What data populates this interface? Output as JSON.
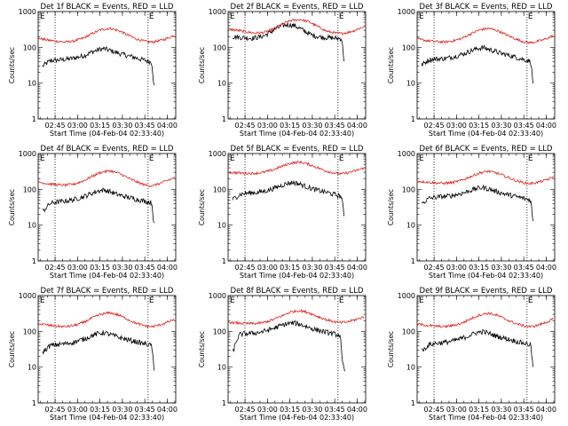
{
  "figure": {
    "start_time_label": "Start Time (04-Feb-04 02:33:40)",
    "ylabel": "Counts/sec",
    "x_ticks": [
      "02:45",
      "03:00",
      "03:15",
      "03:30",
      "03:45",
      "04:00"
    ],
    "y_ticks": [
      "1",
      "10",
      "100",
      "1000"
    ],
    "marker": "E",
    "colors": {
      "events": "#000000",
      "lld": "#e0201b",
      "dotted": "#000000"
    }
  },
  "chart_data": [
    {
      "type": "line",
      "title": "Det 1f BLACK = Events, RED = LLD",
      "x_unit": "minutes after 02:33:40",
      "xlim": [
        0,
        92
      ],
      "ylim": [
        1,
        1000
      ],
      "yscale": "log",
      "dotted_x": [
        11.3,
        73.5
      ],
      "series": [
        {
          "name": "Events",
          "x": [
            3,
            8,
            12,
            16,
            20,
            24,
            28,
            32,
            36,
            40,
            44,
            48,
            52,
            56,
            60,
            64,
            68,
            72,
            76,
            77.5
          ],
          "values": [
            30,
            42,
            44,
            45,
            47,
            50,
            55,
            62,
            74,
            85,
            92,
            82,
            72,
            64,
            58,
            53,
            47,
            43,
            38,
            8
          ]
        },
        {
          "name": "LLD",
          "x": [
            0,
            6,
            12,
            18,
            24,
            30,
            36,
            42,
            48,
            54,
            60,
            66,
            72,
            76,
            80,
            84,
            88,
            91
          ],
          "values": [
            180,
            160,
            148,
            140,
            150,
            180,
            240,
            310,
            340,
            290,
            220,
            170,
            145,
            140,
            150,
            165,
            190,
            220
          ]
        }
      ]
    },
    {
      "type": "line",
      "title": "Det 2f BLACK = Events, RED = LLD",
      "x_unit": "minutes after 02:33:40",
      "xlim": [
        0,
        92
      ],
      "ylim": [
        1,
        1000
      ],
      "yscale": "log",
      "dotted_x": [
        11.3,
        73.5
      ],
      "series": [
        {
          "name": "Events",
          "x": [
            3,
            8,
            12,
            16,
            20,
            24,
            28,
            32,
            36,
            40,
            44,
            48,
            52,
            56,
            60,
            64,
            68,
            72,
            76,
            77.5
          ],
          "values": [
            200,
            190,
            185,
            180,
            190,
            210,
            260,
            330,
            400,
            430,
            410,
            340,
            270,
            220,
            200,
            190,
            185,
            180,
            175,
            45
          ]
        },
        {
          "name": "LLD",
          "x": [
            0,
            6,
            12,
            18,
            24,
            30,
            36,
            42,
            48,
            54,
            60,
            66,
            72,
            76,
            80,
            84,
            88,
            91
          ],
          "values": [
            320,
            300,
            270,
            250,
            260,
            320,
            440,
            560,
            600,
            520,
            380,
            280,
            250,
            245,
            260,
            290,
            340,
            380
          ]
        }
      ]
    },
    {
      "type": "line",
      "title": "Det 3f BLACK = Events, RED = LLD",
      "x_unit": "minutes after 02:33:40",
      "xlim": [
        0,
        92
      ],
      "ylim": [
        1,
        1000
      ],
      "yscale": "log",
      "dotted_x": [
        11.3,
        73.5
      ],
      "series": [
        {
          "name": "Events",
          "x": [
            3,
            8,
            12,
            16,
            20,
            24,
            28,
            32,
            36,
            40,
            44,
            48,
            52,
            56,
            60,
            64,
            68,
            72,
            76,
            77.5
          ],
          "values": [
            32,
            45,
            47,
            48,
            50,
            54,
            60,
            68,
            80,
            92,
            98,
            88,
            78,
            68,
            62,
            56,
            50,
            45,
            40,
            10
          ]
        },
        {
          "name": "LLD",
          "x": [
            0,
            6,
            12,
            18,
            24,
            30,
            36,
            42,
            48,
            54,
            60,
            66,
            72,
            76,
            80,
            84,
            88,
            91
          ],
          "values": [
            170,
            155,
            145,
            140,
            150,
            180,
            240,
            310,
            340,
            290,
            220,
            170,
            140,
            135,
            145,
            160,
            185,
            215
          ]
        }
      ]
    },
    {
      "type": "line",
      "title": "Det 4f BLACK = Events, RED = LLD",
      "x_unit": "minutes after 02:33:40",
      "xlim": [
        0,
        92
      ],
      "ylim": [
        1,
        1000
      ],
      "yscale": "log",
      "dotted_x": [
        11.3,
        73.5
      ],
      "series": [
        {
          "name": "Events",
          "x": [
            3,
            8,
            12,
            16,
            20,
            24,
            28,
            32,
            36,
            40,
            44,
            48,
            52,
            56,
            60,
            64,
            68,
            72,
            76,
            77.5
          ],
          "values": [
            24,
            40,
            44,
            46,
            48,
            52,
            58,
            66,
            78,
            90,
            96,
            86,
            74,
            66,
            60,
            55,
            50,
            46,
            42,
            10
          ]
        },
        {
          "name": "LLD",
          "x": [
            0,
            6,
            12,
            18,
            24,
            30,
            36,
            42,
            48,
            54,
            60,
            66,
            72,
            76,
            80,
            84,
            88,
            91
          ],
          "values": [
            160,
            145,
            135,
            130,
            140,
            170,
            230,
            300,
            330,
            280,
            210,
            160,
            130,
            125,
            140,
            160,
            185,
            215
          ]
        }
      ]
    },
    {
      "type": "line",
      "title": "Det 5f BLACK = Events, RED = LLD",
      "x_unit": "minutes after 02:33:40",
      "xlim": [
        0,
        92
      ],
      "ylim": [
        1,
        1000
      ],
      "yscale": "log",
      "dotted_x": [
        11.3,
        73.5
      ],
      "series": [
        {
          "name": "Events",
          "x": [
            3,
            8,
            12,
            16,
            20,
            24,
            28,
            32,
            36,
            40,
            44,
            48,
            52,
            56,
            60,
            64,
            68,
            72,
            76,
            77.5
          ],
          "values": [
            52,
            72,
            78,
            80,
            82,
            88,
            98,
            112,
            130,
            148,
            155,
            140,
            120,
            104,
            94,
            86,
            78,
            70,
            62,
            18
          ]
        },
        {
          "name": "LLD",
          "x": [
            0,
            6,
            12,
            18,
            24,
            30,
            36,
            42,
            48,
            54,
            60,
            66,
            72,
            76,
            80,
            84,
            88,
            91
          ],
          "values": [
            300,
            290,
            280,
            280,
            300,
            350,
            440,
            540,
            580,
            500,
            400,
            320,
            280,
            270,
            290,
            320,
            360,
            400
          ]
        }
      ]
    },
    {
      "type": "line",
      "title": "Det 6f BLACK = Events, RED = LLD",
      "x_unit": "minutes after 02:33:40",
      "xlim": [
        0,
        92
      ],
      "ylim": [
        1,
        1000
      ],
      "yscale": "log",
      "dotted_x": [
        11.3,
        73.5
      ],
      "series": [
        {
          "name": "Events",
          "x": [
            3,
            8,
            12,
            16,
            20,
            24,
            28,
            32,
            36,
            40,
            44,
            48,
            52,
            56,
            60,
            64,
            68,
            72,
            76,
            77.5
          ],
          "values": [
            40,
            56,
            60,
            62,
            64,
            68,
            74,
            82,
            94,
            106,
            112,
            102,
            90,
            80,
            72,
            66,
            60,
            55,
            50,
            12
          ]
        },
        {
          "name": "LLD",
          "x": [
            0,
            6,
            12,
            18,
            24,
            30,
            36,
            42,
            48,
            54,
            60,
            66,
            72,
            76,
            80,
            84,
            88,
            91
          ],
          "values": [
            170,
            160,
            152,
            148,
            155,
            180,
            230,
            290,
            320,
            280,
            220,
            175,
            150,
            145,
            155,
            170,
            195,
            225
          ]
        }
      ]
    },
    {
      "type": "line",
      "title": "Det 7f BLACK = Events, RED = LLD",
      "x_unit": "minutes after 02:33:40",
      "xlim": [
        0,
        92
      ],
      "ylim": [
        1,
        1000
      ],
      "yscale": "log",
      "dotted_x": [
        11.3,
        73.5
      ],
      "series": [
        {
          "name": "Events",
          "x": [
            3,
            8,
            12,
            16,
            20,
            24,
            28,
            32,
            36,
            40,
            44,
            48,
            52,
            56,
            60,
            64,
            68,
            72,
            76,
            77.5
          ],
          "values": [
            26,
            40,
            42,
            44,
            46,
            50,
            56,
            64,
            76,
            86,
            92,
            82,
            72,
            64,
            58,
            53,
            48,
            44,
            40,
            8
          ]
        },
        {
          "name": "LLD",
          "x": [
            0,
            6,
            12,
            18,
            24,
            30,
            36,
            42,
            48,
            54,
            60,
            66,
            72,
            76,
            80,
            84,
            88,
            91
          ],
          "values": [
            165,
            150,
            140,
            135,
            145,
            175,
            235,
            300,
            330,
            285,
            215,
            165,
            140,
            135,
            145,
            165,
            190,
            220
          ]
        }
      ]
    },
    {
      "type": "line",
      "title": "Det 8f BLACK = Events, RED = LLD",
      "x_unit": "minutes after 02:33:40",
      "xlim": [
        0,
        92
      ],
      "ylim": [
        1,
        1000
      ],
      "yscale": "log",
      "dotted_x": [
        11.3,
        73.5
      ],
      "series": [
        {
          "name": "Events",
          "x": [
            3,
            6,
            8,
            12,
            16,
            20,
            24,
            28,
            32,
            36,
            40,
            44,
            48,
            52,
            56,
            60,
            64,
            68,
            72,
            75,
            76.5,
            78
          ],
          "values": [
            25,
            60,
            82,
            86,
            88,
            92,
            100,
            112,
            128,
            148,
            165,
            172,
            158,
            138,
            120,
            108,
            98,
            90,
            82,
            78,
            12,
            8
          ]
        },
        {
          "name": "LLD",
          "x": [
            0,
            6,
            12,
            18,
            24,
            30,
            36,
            42,
            48,
            54,
            60,
            66,
            72,
            76,
            80,
            84,
            88,
            91
          ],
          "values": [
            180,
            170,
            165,
            165,
            175,
            210,
            270,
            350,
            380,
            330,
            260,
            210,
            180,
            175,
            185,
            205,
            230,
            260
          ]
        }
      ]
    },
    {
      "type": "line",
      "title": "Det 9f BLACK = Events, RED = LLD",
      "x_unit": "minutes after 02:33:40",
      "xlim": [
        0,
        92
      ],
      "ylim": [
        1,
        1000
      ],
      "yscale": "log",
      "dotted_x": [
        11.3,
        73.5
      ],
      "series": [
        {
          "name": "Events",
          "x": [
            3,
            8,
            12,
            16,
            20,
            24,
            28,
            32,
            36,
            40,
            44,
            48,
            52,
            56,
            60,
            64,
            68,
            72,
            76,
            77.5
          ],
          "values": [
            28,
            42,
            46,
            48,
            50,
            54,
            60,
            68,
            80,
            92,
            98,
            88,
            76,
            68,
            62,
            56,
            50,
            46,
            42,
            10
          ]
        },
        {
          "name": "LLD",
          "x": [
            0,
            6,
            12,
            18,
            24,
            30,
            36,
            42,
            48,
            54,
            60,
            66,
            72,
            76,
            80,
            84,
            88,
            91
          ],
          "values": [
            160,
            148,
            140,
            135,
            145,
            170,
            225,
            290,
            320,
            275,
            210,
            165,
            140,
            135,
            145,
            165,
            190,
            220
          ]
        }
      ]
    }
  ]
}
